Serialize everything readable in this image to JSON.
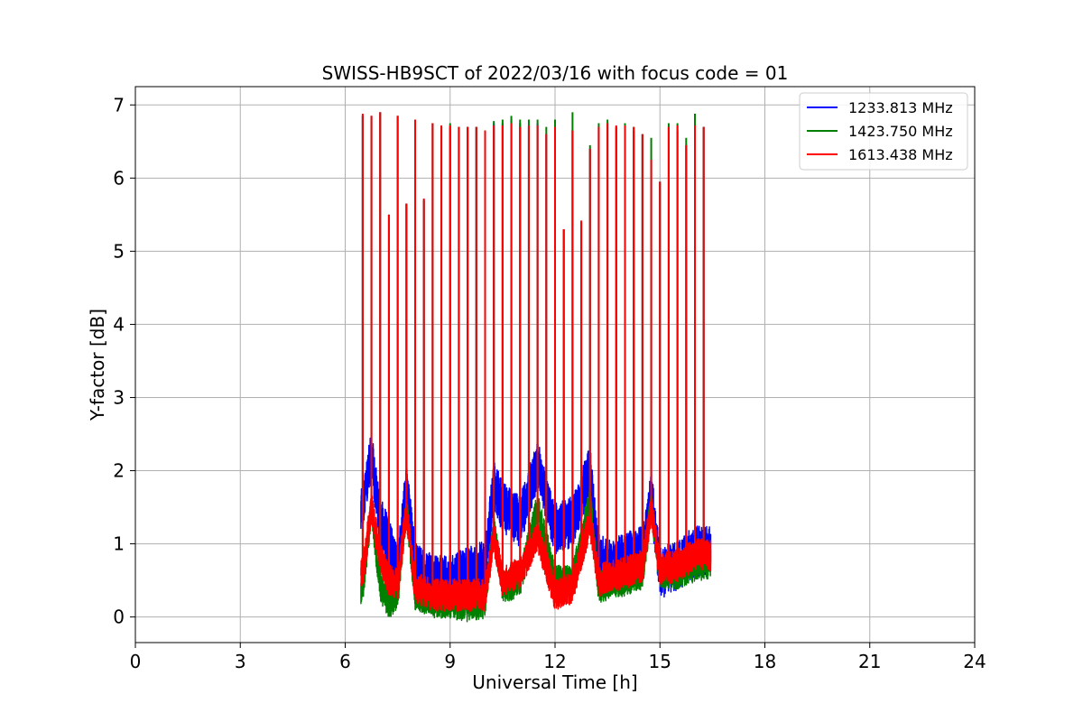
{
  "chart_data": {
    "type": "line",
    "title": "SWISS-HB9SCT of 2022/03/16 with focus code = 01",
    "xlabel": "Universal Time [h]",
    "ylabel": "Y-factor [dB]",
    "xlim": [
      0,
      24
    ],
    "ylim": [
      -0.35,
      7.25
    ],
    "xticks": [
      0,
      3,
      6,
      9,
      12,
      15,
      18,
      21,
      24
    ],
    "yticks": [
      0,
      1,
      2,
      3,
      4,
      5,
      6,
      7
    ],
    "grid": true,
    "legend_position": "top-right",
    "data_range_x": [
      6.45,
      16.45
    ],
    "series": [
      {
        "name": "1233.813 MHz",
        "color": "#0000ff",
        "peaks": [
          {
            "x": 6.5,
            "y": 6.85
          },
          {
            "x": 6.75,
            "y": 6.85
          },
          {
            "x": 7.0,
            "y": 6.9
          },
          {
            "x": 7.25,
            "y": 5.5
          },
          {
            "x": 7.5,
            "y": 6.85
          },
          {
            "x": 7.75,
            "y": 5.65
          },
          {
            "x": 8.0,
            "y": 6.8
          },
          {
            "x": 8.25,
            "y": 5.7
          },
          {
            "x": 8.5,
            "y": 6.75
          },
          {
            "x": 8.75,
            "y": 6.7
          },
          {
            "x": 9.0,
            "y": 6.7
          },
          {
            "x": 9.25,
            "y": 6.7
          },
          {
            "x": 9.5,
            "y": 6.7
          },
          {
            "x": 9.75,
            "y": 6.7
          },
          {
            "x": 10.0,
            "y": 6.65
          },
          {
            "x": 10.25,
            "y": 6.75
          },
          {
            "x": 10.5,
            "y": 6.75
          },
          {
            "x": 10.75,
            "y": 6.8
          },
          {
            "x": 11.0,
            "y": 6.75
          },
          {
            "x": 11.25,
            "y": 6.7
          },
          {
            "x": 11.5,
            "y": 6.75
          },
          {
            "x": 11.75,
            "y": 6.6
          },
          {
            "x": 12.0,
            "y": 6.7
          },
          {
            "x": 12.25,
            "y": 5.3
          },
          {
            "x": 12.5,
            "y": 6.65
          },
          {
            "x": 12.75,
            "y": 5.4
          },
          {
            "x": 13.0,
            "y": 6.4
          },
          {
            "x": 13.25,
            "y": 6.7
          },
          {
            "x": 13.5,
            "y": 6.75
          },
          {
            "x": 13.75,
            "y": 6.7
          },
          {
            "x": 14.0,
            "y": 6.7
          },
          {
            "x": 14.25,
            "y": 6.65
          },
          {
            "x": 14.5,
            "y": 6.6
          },
          {
            "x": 14.75,
            "y": 6.25
          },
          {
            "x": 15.0,
            "y": 5.95
          },
          {
            "x": 15.25,
            "y": 6.7
          },
          {
            "x": 15.5,
            "y": 6.65
          },
          {
            "x": 15.75,
            "y": 6.45
          },
          {
            "x": 16.0,
            "y": 6.7
          },
          {
            "x": 16.25,
            "y": 6.7
          }
        ],
        "baseline": [
          {
            "x": 6.5,
            "y": 1.5
          },
          {
            "x": 6.75,
            "y": 2.2
          },
          {
            "x": 7.0,
            "y": 1.3
          },
          {
            "x": 7.25,
            "y": 1.0
          },
          {
            "x": 7.5,
            "y": 0.6
          },
          {
            "x": 7.75,
            "y": 1.8
          },
          {
            "x": 8.0,
            "y": 0.7
          },
          {
            "x": 8.5,
            "y": 0.5
          },
          {
            "x": 9.0,
            "y": 0.5
          },
          {
            "x": 9.5,
            "y": 0.6
          },
          {
            "x": 10.0,
            "y": 0.7
          },
          {
            "x": 10.25,
            "y": 1.8
          },
          {
            "x": 10.5,
            "y": 1.5
          },
          {
            "x": 11.0,
            "y": 1.3
          },
          {
            "x": 11.5,
            "y": 2.1
          },
          {
            "x": 12.0,
            "y": 1.2
          },
          {
            "x": 12.5,
            "y": 1.3
          },
          {
            "x": 13.0,
            "y": 2.0
          },
          {
            "x": 13.25,
            "y": 0.8
          },
          {
            "x": 13.5,
            "y": 0.7
          },
          {
            "x": 14.0,
            "y": 0.8
          },
          {
            "x": 14.5,
            "y": 0.9
          },
          {
            "x": 14.75,
            "y": 1.7
          },
          {
            "x": 15.0,
            "y": 0.6
          },
          {
            "x": 15.5,
            "y": 0.7
          },
          {
            "x": 16.0,
            "y": 0.9
          },
          {
            "x": 16.45,
            "y": 0.9
          }
        ]
      },
      {
        "name": "1423.750 MHz",
        "color": "#008000",
        "peaks": [
          {
            "x": 6.5,
            "y": 6.85
          },
          {
            "x": 6.75,
            "y": 6.85
          },
          {
            "x": 7.0,
            "y": 6.9
          },
          {
            "x": 7.25,
            "y": 5.5
          },
          {
            "x": 7.5,
            "y": 6.85
          },
          {
            "x": 7.75,
            "y": 5.65
          },
          {
            "x": 8.0,
            "y": 6.8
          },
          {
            "x": 8.25,
            "y": 5.7
          },
          {
            "x": 8.5,
            "y": 6.75
          },
          {
            "x": 8.75,
            "y": 6.7
          },
          {
            "x": 9.0,
            "y": 6.75
          },
          {
            "x": 9.25,
            "y": 6.7
          },
          {
            "x": 9.5,
            "y": 6.7
          },
          {
            "x": 9.75,
            "y": 6.7
          },
          {
            "x": 10.0,
            "y": 6.65
          },
          {
            "x": 10.25,
            "y": 6.78
          },
          {
            "x": 10.5,
            "y": 6.8
          },
          {
            "x": 10.75,
            "y": 6.85
          },
          {
            "x": 11.0,
            "y": 6.8
          },
          {
            "x": 11.25,
            "y": 6.8
          },
          {
            "x": 11.5,
            "y": 6.8
          },
          {
            "x": 11.75,
            "y": 6.7
          },
          {
            "x": 12.0,
            "y": 6.8
          },
          {
            "x": 12.25,
            "y": 5.3
          },
          {
            "x": 12.5,
            "y": 6.9
          },
          {
            "x": 12.75,
            "y": 5.4
          },
          {
            "x": 13.0,
            "y": 6.45
          },
          {
            "x": 13.25,
            "y": 6.75
          },
          {
            "x": 13.5,
            "y": 6.8
          },
          {
            "x": 13.75,
            "y": 6.7
          },
          {
            "x": 14.0,
            "y": 6.75
          },
          {
            "x": 14.25,
            "y": 6.7
          },
          {
            "x": 14.5,
            "y": 6.6
          },
          {
            "x": 14.75,
            "y": 6.55
          },
          {
            "x": 15.0,
            "y": 5.95
          },
          {
            "x": 15.25,
            "y": 6.75
          },
          {
            "x": 15.5,
            "y": 6.75
          },
          {
            "x": 15.75,
            "y": 6.55
          },
          {
            "x": 16.0,
            "y": 6.88
          },
          {
            "x": 16.25,
            "y": 6.7
          }
        ],
        "baseline": [
          {
            "x": 6.5,
            "y": 0.4
          },
          {
            "x": 6.75,
            "y": 1.5
          },
          {
            "x": 7.0,
            "y": 0.4
          },
          {
            "x": 7.25,
            "y": 0.2
          },
          {
            "x": 7.5,
            "y": 0.3
          },
          {
            "x": 7.75,
            "y": 1.5
          },
          {
            "x": 8.0,
            "y": 0.3
          },
          {
            "x": 8.5,
            "y": 0.2
          },
          {
            "x": 9.0,
            "y": 0.2
          },
          {
            "x": 9.5,
            "y": 0.15
          },
          {
            "x": 10.0,
            "y": 0.2
          },
          {
            "x": 10.25,
            "y": 1.2
          },
          {
            "x": 10.5,
            "y": 0.4
          },
          {
            "x": 11.0,
            "y": 0.5
          },
          {
            "x": 11.5,
            "y": 1.5
          },
          {
            "x": 12.0,
            "y": 0.5
          },
          {
            "x": 12.5,
            "y": 0.5
          },
          {
            "x": 13.0,
            "y": 1.6
          },
          {
            "x": 13.25,
            "y": 0.4
          },
          {
            "x": 13.5,
            "y": 0.45
          },
          {
            "x": 14.0,
            "y": 0.5
          },
          {
            "x": 14.5,
            "y": 0.6
          },
          {
            "x": 14.75,
            "y": 1.5
          },
          {
            "x": 15.0,
            "y": 0.6
          },
          {
            "x": 15.5,
            "y": 0.6
          },
          {
            "x": 16.0,
            "y": 0.7
          },
          {
            "x": 16.45,
            "y": 0.75
          }
        ]
      },
      {
        "name": "1613.438 MHz",
        "color": "#ff0000",
        "peaks": [
          {
            "x": 6.5,
            "y": 6.88
          },
          {
            "x": 6.75,
            "y": 6.85
          },
          {
            "x": 7.0,
            "y": 6.9
          },
          {
            "x": 7.25,
            "y": 5.5
          },
          {
            "x": 7.5,
            "y": 6.85
          },
          {
            "x": 7.75,
            "y": 5.65
          },
          {
            "x": 8.0,
            "y": 6.8
          },
          {
            "x": 8.25,
            "y": 5.72
          },
          {
            "x": 8.5,
            "y": 6.75
          },
          {
            "x": 8.75,
            "y": 6.72
          },
          {
            "x": 9.0,
            "y": 6.72
          },
          {
            "x": 9.25,
            "y": 6.7
          },
          {
            "x": 9.5,
            "y": 6.7
          },
          {
            "x": 9.75,
            "y": 6.7
          },
          {
            "x": 10.0,
            "y": 6.65
          },
          {
            "x": 10.25,
            "y": 6.72
          },
          {
            "x": 10.5,
            "y": 6.72
          },
          {
            "x": 10.75,
            "y": 6.75
          },
          {
            "x": 11.0,
            "y": 6.7
          },
          {
            "x": 11.25,
            "y": 6.72
          },
          {
            "x": 11.5,
            "y": 6.72
          },
          {
            "x": 11.75,
            "y": 6.6
          },
          {
            "x": 12.0,
            "y": 6.7
          },
          {
            "x": 12.25,
            "y": 5.3
          },
          {
            "x": 12.5,
            "y": 6.65
          },
          {
            "x": 12.75,
            "y": 5.42
          },
          {
            "x": 13.0,
            "y": 6.4
          },
          {
            "x": 13.25,
            "y": 6.7
          },
          {
            "x": 13.5,
            "y": 6.75
          },
          {
            "x": 13.75,
            "y": 6.72
          },
          {
            "x": 14.0,
            "y": 6.72
          },
          {
            "x": 14.25,
            "y": 6.7
          },
          {
            "x": 14.5,
            "y": 6.6
          },
          {
            "x": 14.75,
            "y": 6.25
          },
          {
            "x": 15.0,
            "y": 5.95
          },
          {
            "x": 15.25,
            "y": 6.7
          },
          {
            "x": 15.5,
            "y": 6.72
          },
          {
            "x": 15.75,
            "y": 6.45
          },
          {
            "x": 16.0,
            "y": 6.72
          },
          {
            "x": 16.25,
            "y": 6.7
          }
        ],
        "baseline": [
          {
            "x": 6.5,
            "y": 0.6
          },
          {
            "x": 6.75,
            "y": 1.5
          },
          {
            "x": 7.0,
            "y": 0.8
          },
          {
            "x": 7.25,
            "y": 0.5
          },
          {
            "x": 7.5,
            "y": 0.45
          },
          {
            "x": 7.75,
            "y": 1.45
          },
          {
            "x": 8.0,
            "y": 0.4
          },
          {
            "x": 8.5,
            "y": 0.3
          },
          {
            "x": 9.0,
            "y": 0.3
          },
          {
            "x": 9.5,
            "y": 0.3
          },
          {
            "x": 10.0,
            "y": 0.3
          },
          {
            "x": 10.25,
            "y": 1.1
          },
          {
            "x": 10.5,
            "y": 0.5
          },
          {
            "x": 11.0,
            "y": 0.6
          },
          {
            "x": 11.5,
            "y": 1.1
          },
          {
            "x": 12.0,
            "y": 0.3
          },
          {
            "x": 12.5,
            "y": 0.4
          },
          {
            "x": 13.0,
            "y": 1.3
          },
          {
            "x": 13.25,
            "y": 0.5
          },
          {
            "x": 13.5,
            "y": 0.55
          },
          {
            "x": 14.0,
            "y": 0.6
          },
          {
            "x": 14.5,
            "y": 0.7
          },
          {
            "x": 14.75,
            "y": 1.5
          },
          {
            "x": 15.0,
            "y": 0.65
          },
          {
            "x": 15.5,
            "y": 0.7
          },
          {
            "x": 16.0,
            "y": 0.85
          },
          {
            "x": 16.45,
            "y": 0.85
          }
        ]
      }
    ]
  }
}
